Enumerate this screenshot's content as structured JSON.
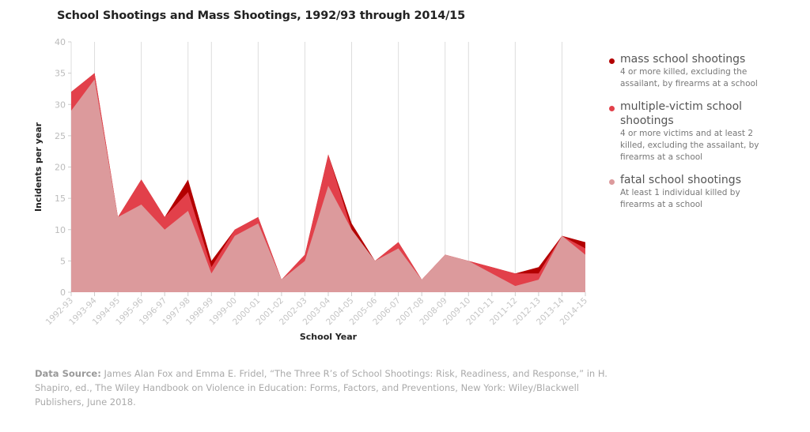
{
  "title": "School Shootings and Mass Shootings, 1992/93 through 2014/15",
  "chart_data": {
    "type": "area",
    "stacked": true,
    "title": "School Shootings and Mass Shootings, 1992/93 through 2014/15",
    "xlabel": "School Year",
    "ylabel": "Incidents per year",
    "ylim": [
      0,
      40
    ],
    "yticks": [
      0,
      5,
      10,
      15,
      20,
      25,
      30,
      35,
      40
    ],
    "grid": "vertical lines at selected years",
    "legend_position": "right",
    "categories": [
      "1992-93",
      "1993-94",
      "1994-95",
      "1995-96",
      "1996-97",
      "1997-98",
      "1998-99",
      "1999-00",
      "2000-01",
      "2001-02",
      "2002-03",
      "2003-04",
      "2004-05",
      "2005-06",
      "2006-07",
      "2007-08",
      "2008-09",
      "2009-10",
      "2010-11",
      "2011-12",
      "2012-13",
      "2013-14",
      "2014-15"
    ],
    "series": [
      {
        "name": "fatal school shootings",
        "color": "#dc9a9c",
        "values": [
          29,
          34,
          12,
          14,
          10,
          13,
          3,
          9,
          11,
          2,
          5,
          17,
          10,
          5,
          7,
          2,
          6,
          5,
          3,
          1,
          2,
          9,
          6
        ]
      },
      {
        "name": "multiple-victim school shootings",
        "color": "#e2404a",
        "values": [
          3,
          1,
          0,
          4,
          2,
          3,
          1,
          1,
          1,
          0,
          1,
          5,
          0,
          0,
          1,
          0,
          0,
          0,
          1,
          2,
          1,
          0,
          1
        ]
      },
      {
        "name": "mass school shootings",
        "color": "#b30000",
        "values": [
          0,
          0,
          0,
          0,
          0,
          2,
          1,
          0,
          0,
          0,
          0,
          0,
          1,
          0,
          0,
          0,
          0,
          0,
          0,
          0,
          1,
          0,
          1
        ]
      }
    ]
  },
  "legend": [
    {
      "name": "mass school shootings",
      "desc": "4 or more killed, excluding the assailant, by firearms at a school",
      "color": "#b30000"
    },
    {
      "name": "multiple-victim school shootings",
      "desc": "4 or more victims and at least 2 killed, excluding the assailant, by firearms at a school",
      "color": "#e2404a"
    },
    {
      "name": "fatal school shootings",
      "desc": "At least 1 individual killed by firearms at a school",
      "color": "#dc9a9c"
    }
  ],
  "source": {
    "label": "Data Source:",
    "text": " James Alan Fox and Emma E. Fridel, “The Three R’s of School Shootings: Risk, Readiness, and Response,” in H. Shapiro, ed., The Wiley Handbook on Violence in Education: Forms, Factors, and Preventions, New York: Wiley/Blackwell Publishers, June 2018."
  }
}
